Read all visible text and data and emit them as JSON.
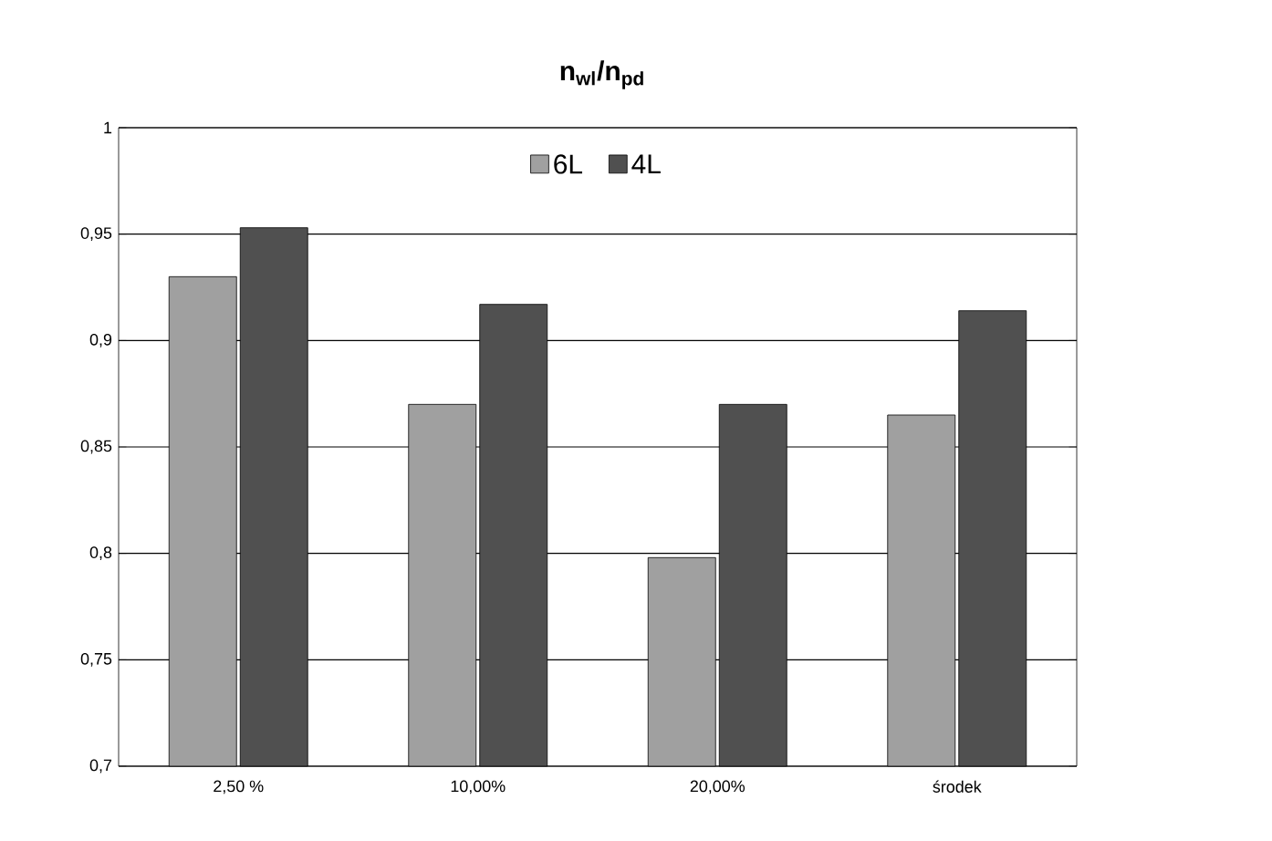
{
  "chart_data": {
    "type": "bar",
    "title": "n$_{wl}$/n$_{pd}$",
    "categories": [
      "2,50 %",
      "10,00%",
      "20,00%",
      "środek"
    ],
    "series": [
      {
        "name": "6L",
        "color": "#a0a0a0",
        "values": [
          0.93,
          0.87,
          0.798,
          0.865
        ]
      },
      {
        "name": "4L",
        "color": "#505050",
        "values": [
          0.953,
          0.917,
          0.87,
          0.914
        ]
      }
    ],
    "ylim": [
      0.7,
      1
    ],
    "yticks": [
      {
        "value": 0.7,
        "label": "0,7"
      },
      {
        "value": 0.75,
        "label": "0,75"
      },
      {
        "value": 0.8,
        "label": "0,8"
      },
      {
        "value": 0.85,
        "label": "0,85"
      },
      {
        "value": 0.9,
        "label": "0,9"
      },
      {
        "value": 0.95,
        "label": "0,95"
      },
      {
        "value": 1,
        "label": "1"
      }
    ],
    "grid": "y",
    "legend": "top"
  }
}
